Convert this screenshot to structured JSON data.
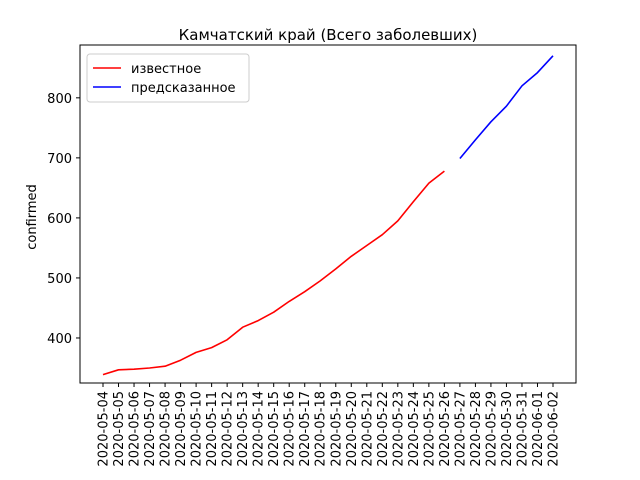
{
  "chart_data": {
    "type": "line",
    "title": "Камчатский край (Всего заболевших)",
    "xlabel": "",
    "ylabel": "confirmed",
    "ylim": [
      325,
      888
    ],
    "yticks": [
      400,
      500,
      600,
      700,
      800
    ],
    "grid": false,
    "legend_position": "top-left",
    "x": [
      "2020-05-04",
      "2020-05-05",
      "2020-05-06",
      "2020-05-07",
      "2020-05-08",
      "2020-05-09",
      "2020-05-10",
      "2020-05-11",
      "2020-05-12",
      "2020-05-13",
      "2020-05-14",
      "2020-05-15",
      "2020-05-16",
      "2020-05-17",
      "2020-05-18",
      "2020-05-19",
      "2020-05-20",
      "2020-05-21",
      "2020-05-22",
      "2020-05-23",
      "2020-05-24",
      "2020-05-25",
      "2020-05-26",
      "2020-05-27",
      "2020-05-28",
      "2020-05-29",
      "2020-05-30",
      "2020-05-31",
      "2020-06-01",
      "2020-06-02"
    ],
    "series": [
      {
        "name": "известное",
        "color": "#ff0000",
        "x": [
          "2020-05-04",
          "2020-05-05",
          "2020-05-06",
          "2020-05-07",
          "2020-05-08",
          "2020-05-09",
          "2020-05-10",
          "2020-05-11",
          "2020-05-12",
          "2020-05-13",
          "2020-05-14",
          "2020-05-15",
          "2020-05-16",
          "2020-05-17",
          "2020-05-18",
          "2020-05-19",
          "2020-05-20",
          "2020-05-21",
          "2020-05-22",
          "2020-05-23",
          "2020-05-24",
          "2020-05-25",
          "2020-05-26"
        ],
        "values": [
          339,
          347,
          348,
          350,
          353,
          363,
          376,
          384,
          397,
          418,
          429,
          443,
          461,
          477,
          495,
          515,
          536,
          554,
          572,
          595,
          627,
          658,
          678
        ]
      },
      {
        "name": "предсказанное",
        "color": "#0000ff",
        "x": [
          "2020-05-27",
          "2020-05-28",
          "2020-05-29",
          "2020-05-30",
          "2020-05-31",
          "2020-06-01",
          "2020-06-02"
        ],
        "values": [
          699,
          730,
          760,
          786,
          820,
          842,
          870
        ]
      }
    ]
  }
}
